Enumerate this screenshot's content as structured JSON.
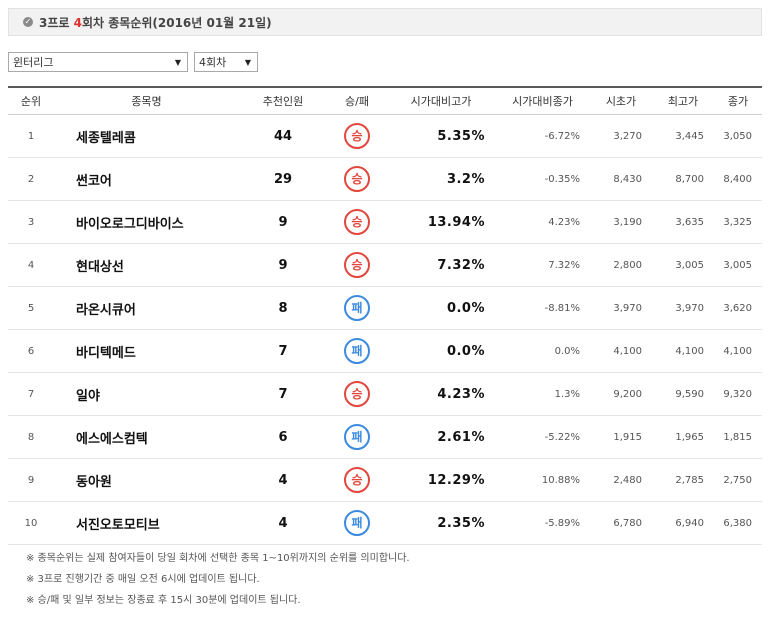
{
  "header": {
    "icon": "check-circle-icon",
    "title_prefix": "3프로 ",
    "title_num": "4",
    "title_suffix": "회차 종목순위(2016년 01월 21일)"
  },
  "filters": {
    "league": "윈터리그",
    "round": "4회차"
  },
  "columns": [
    "순위",
    "종목명",
    "추천인원",
    "승/패",
    "시가대비고가",
    "시가대비종가",
    "시초가",
    "최고가",
    "종가"
  ],
  "rows": [
    {
      "rank": "1",
      "name": "세종텔레콤",
      "rec": "44",
      "result": "승",
      "high_pct": "5.35%",
      "close_pct": "-6.72%",
      "open": "3,270",
      "high": "3,445",
      "close": "3,050"
    },
    {
      "rank": "2",
      "name": "썬코어",
      "rec": "29",
      "result": "승",
      "high_pct": "3.2%",
      "close_pct": "-0.35%",
      "open": "8,430",
      "high": "8,700",
      "close": "8,400"
    },
    {
      "rank": "3",
      "name": "바이오로그디바이스",
      "rec": "9",
      "result": "승",
      "high_pct": "13.94%",
      "close_pct": "4.23%",
      "open": "3,190",
      "high": "3,635",
      "close": "3,325"
    },
    {
      "rank": "4",
      "name": "현대상선",
      "rec": "9",
      "result": "승",
      "high_pct": "7.32%",
      "close_pct": "7.32%",
      "open": "2,800",
      "high": "3,005",
      "close": "3,005"
    },
    {
      "rank": "5",
      "name": "라온시큐어",
      "rec": "8",
      "result": "패",
      "high_pct": "0.0%",
      "close_pct": "-8.81%",
      "open": "3,970",
      "high": "3,970",
      "close": "3,620"
    },
    {
      "rank": "6",
      "name": "바디텍메드",
      "rec": "7",
      "result": "패",
      "high_pct": "0.0%",
      "close_pct": "0.0%",
      "open": "4,100",
      "high": "4,100",
      "close": "4,100"
    },
    {
      "rank": "7",
      "name": "일야",
      "rec": "7",
      "result": "승",
      "high_pct": "4.23%",
      "close_pct": "1.3%",
      "open": "9,200",
      "high": "9,590",
      "close": "9,320"
    },
    {
      "rank": "8",
      "name": "에스에스컴텍",
      "rec": "6",
      "result": "패",
      "high_pct": "2.61%",
      "close_pct": "-5.22%",
      "open": "1,915",
      "high": "1,965",
      "close": "1,815"
    },
    {
      "rank": "9",
      "name": "동아원",
      "rec": "4",
      "result": "승",
      "high_pct": "12.29%",
      "close_pct": "10.88%",
      "open": "2,480",
      "high": "2,785",
      "close": "2,750"
    },
    {
      "rank": "10",
      "name": "서진오토모티브",
      "rec": "4",
      "result": "패",
      "high_pct": "2.35%",
      "close_pct": "-5.89%",
      "open": "6,780",
      "high": "6,940",
      "close": "6,380"
    }
  ],
  "notes": [
    "※ 종목순위는 실제 참여자들이 당일 회차에 선택한 종목 1~10위까지의 순위를 의미합니다.",
    "※ 3프로 진행기간 중 매일 오전 6시에 업데이트 됩니다.",
    "※ 승/패 및 일부 정보는 장종료 후 15시 30분에 업데이트 됩니다."
  ],
  "colors": {
    "win": "#e2463c",
    "lose": "#3b8ae0",
    "accent": "#e03030"
  }
}
